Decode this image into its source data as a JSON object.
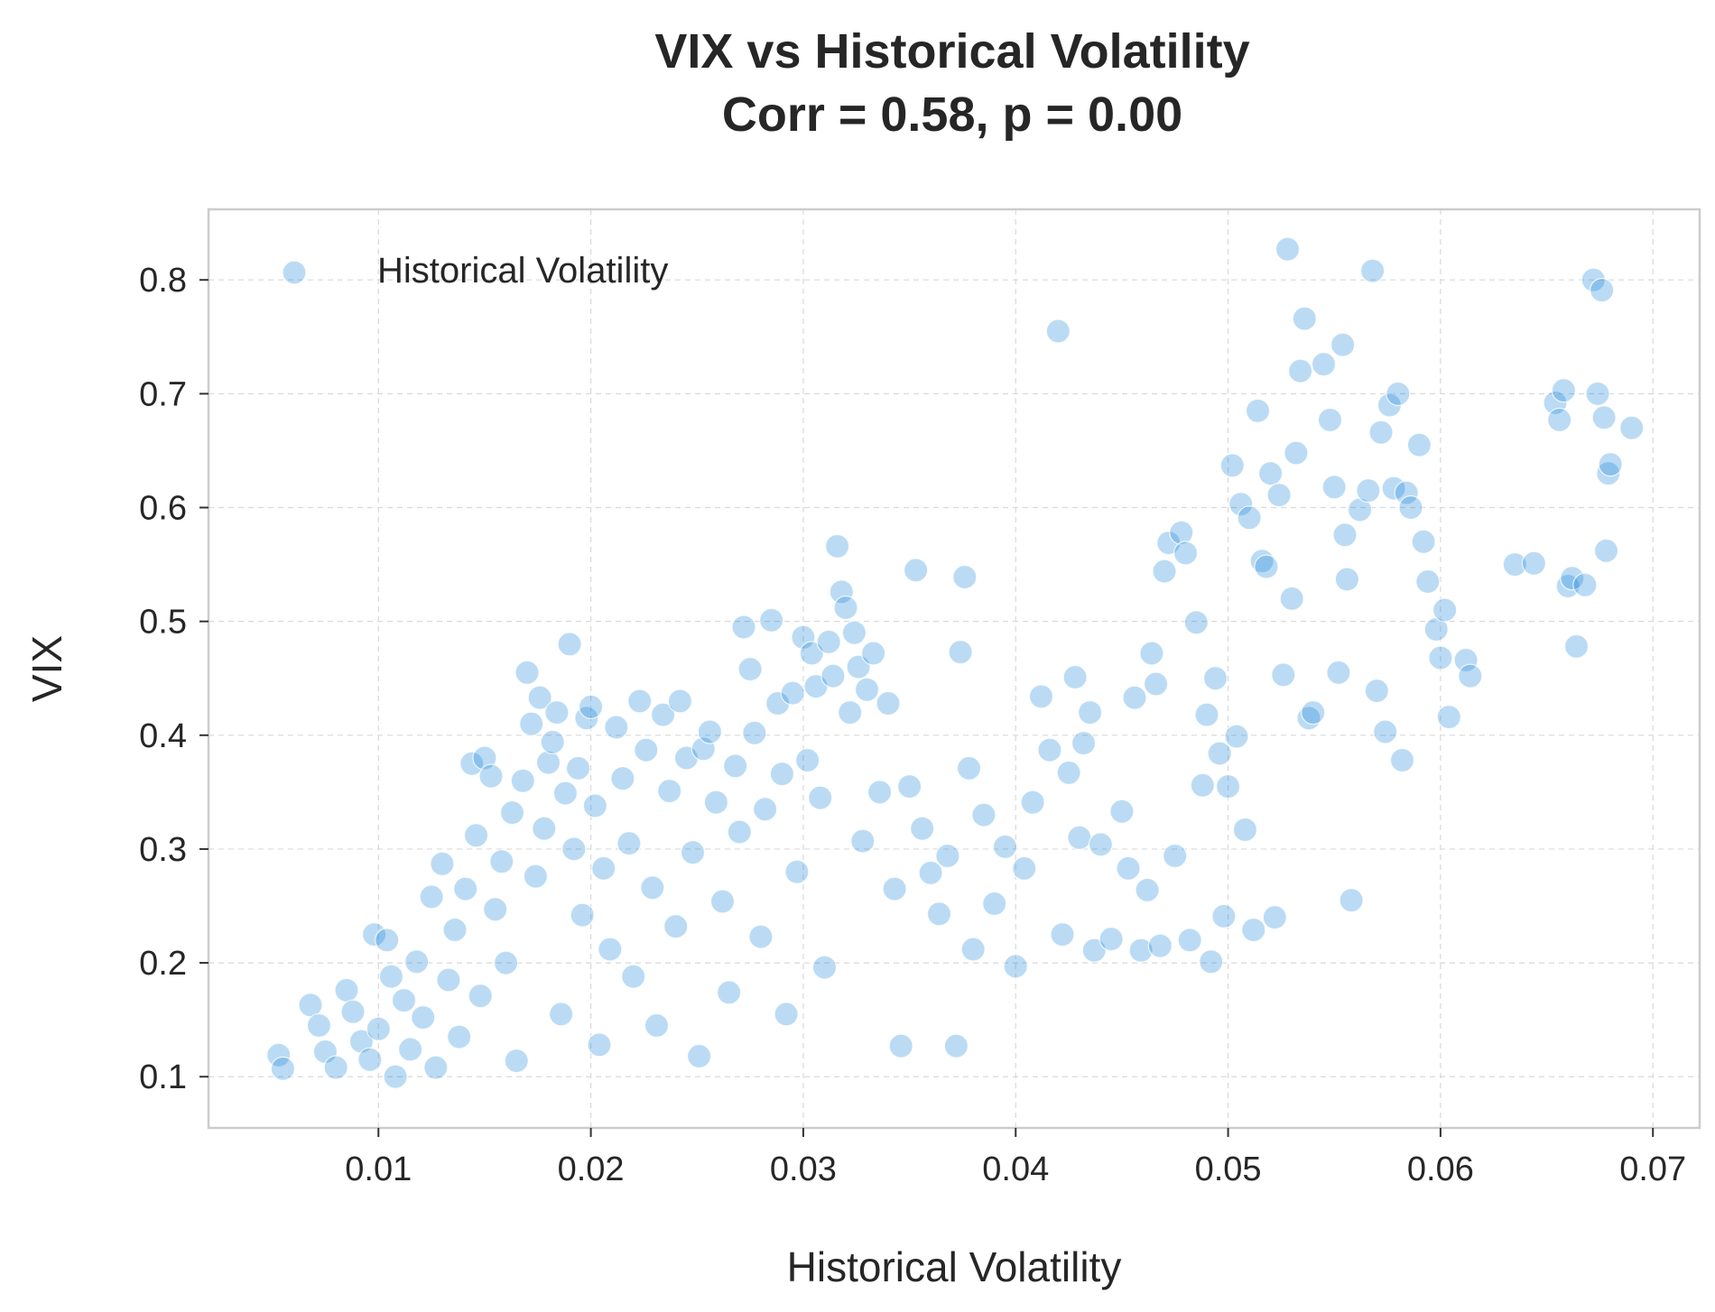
{
  "chart_data": {
    "type": "scatter",
    "title": [
      "VIX vs Historical Volatility",
      "Corr = 0.58, p = 0.00"
    ],
    "xlabel": "Historical Volatility",
    "ylabel": "VIX",
    "xlim": [
      0.002,
      0.0722
    ],
    "ylim": [
      0.055,
      0.862
    ],
    "xticks": [
      0.01,
      0.02,
      0.03,
      0.04,
      0.05,
      0.06,
      0.07
    ],
    "xtick_labels": [
      "0.01",
      "0.02",
      "0.03",
      "0.04",
      "0.05",
      "0.06",
      "0.07"
    ],
    "yticks": [
      0.1,
      0.2,
      0.3,
      0.4,
      0.5,
      0.6,
      0.7,
      0.8
    ],
    "ytick_labels": [
      "0.1",
      "0.2",
      "0.3",
      "0.4",
      "0.5",
      "0.6",
      "0.7",
      "0.8"
    ],
    "grid": true,
    "legend": {
      "placement": "top-left",
      "entries": [
        "Historical Volatility"
      ]
    },
    "colors": {
      "point": "#0a7fd6",
      "grid": "#d9d9d9",
      "frame": "#cccccc"
    },
    "series": [
      {
        "name": "Historical Volatility",
        "points": [
          [
            0.0053,
            0.119
          ],
          [
            0.0055,
            0.107
          ],
          [
            0.0068,
            0.163
          ],
          [
            0.0072,
            0.145
          ],
          [
            0.0075,
            0.122
          ],
          [
            0.008,
            0.108
          ],
          [
            0.0085,
            0.176
          ],
          [
            0.0088,
            0.157
          ],
          [
            0.0092,
            0.131
          ],
          [
            0.0096,
            0.115
          ],
          [
            0.0098,
            0.225
          ],
          [
            0.01,
            0.142
          ],
          [
            0.0104,
            0.22
          ],
          [
            0.0106,
            0.188
          ],
          [
            0.0108,
            0.1
          ],
          [
            0.0112,
            0.167
          ],
          [
            0.0115,
            0.124
          ],
          [
            0.0118,
            0.201
          ],
          [
            0.0121,
            0.152
          ],
          [
            0.0125,
            0.258
          ],
          [
            0.0127,
            0.108
          ],
          [
            0.013,
            0.287
          ],
          [
            0.0133,
            0.185
          ],
          [
            0.0136,
            0.229
          ],
          [
            0.0138,
            0.135
          ],
          [
            0.0141,
            0.265
          ],
          [
            0.0144,
            0.375
          ],
          [
            0.0146,
            0.312
          ],
          [
            0.0148,
            0.171
          ],
          [
            0.015,
            0.38
          ],
          [
            0.0153,
            0.364
          ],
          [
            0.0155,
            0.247
          ],
          [
            0.0158,
            0.289
          ],
          [
            0.016,
            0.2
          ],
          [
            0.0163,
            0.332
          ],
          [
            0.0165,
            0.114
          ],
          [
            0.0168,
            0.36
          ],
          [
            0.017,
            0.455
          ],
          [
            0.0172,
            0.41
          ],
          [
            0.0174,
            0.276
          ],
          [
            0.0176,
            0.433
          ],
          [
            0.0178,
            0.318
          ],
          [
            0.018,
            0.376
          ],
          [
            0.0182,
            0.394
          ],
          [
            0.0184,
            0.42
          ],
          [
            0.0186,
            0.155
          ],
          [
            0.0188,
            0.349
          ],
          [
            0.019,
            0.48
          ],
          [
            0.0192,
            0.3
          ],
          [
            0.0194,
            0.371
          ],
          [
            0.0196,
            0.242
          ],
          [
            0.0198,
            0.415
          ],
          [
            0.02,
            0.425
          ],
          [
            0.0202,
            0.338
          ],
          [
            0.0204,
            0.128
          ],
          [
            0.0206,
            0.283
          ],
          [
            0.0209,
            0.212
          ],
          [
            0.0212,
            0.407
          ],
          [
            0.0215,
            0.362
          ],
          [
            0.0218,
            0.305
          ],
          [
            0.022,
            0.188
          ],
          [
            0.0223,
            0.43
          ],
          [
            0.0226,
            0.387
          ],
          [
            0.0229,
            0.266
          ],
          [
            0.0231,
            0.145
          ],
          [
            0.0234,
            0.418
          ],
          [
            0.0237,
            0.351
          ],
          [
            0.024,
            0.232
          ],
          [
            0.0242,
            0.43
          ],
          [
            0.0245,
            0.38
          ],
          [
            0.0248,
            0.297
          ],
          [
            0.0251,
            0.118
          ],
          [
            0.0253,
            0.388
          ],
          [
            0.0256,
            0.403
          ],
          [
            0.0259,
            0.341
          ],
          [
            0.0262,
            0.254
          ],
          [
            0.0265,
            0.174
          ],
          [
            0.0268,
            0.373
          ],
          [
            0.027,
            0.315
          ],
          [
            0.0272,
            0.495
          ],
          [
            0.0275,
            0.458
          ],
          [
            0.0277,
            0.402
          ],
          [
            0.028,
            0.223
          ],
          [
            0.0282,
            0.335
          ],
          [
            0.0285,
            0.501
          ],
          [
            0.0288,
            0.428
          ],
          [
            0.029,
            0.366
          ],
          [
            0.0292,
            0.155
          ],
          [
            0.0295,
            0.437
          ],
          [
            0.0297,
            0.28
          ],
          [
            0.03,
            0.486
          ],
          [
            0.0302,
            0.378
          ],
          [
            0.0304,
            0.472
          ],
          [
            0.0306,
            0.443
          ],
          [
            0.0308,
            0.345
          ],
          [
            0.031,
            0.196
          ],
          [
            0.0312,
            0.482
          ],
          [
            0.0314,
            0.452
          ],
          [
            0.0316,
            0.566
          ],
          [
            0.0318,
            0.526
          ],
          [
            0.032,
            0.512
          ],
          [
            0.0322,
            0.42
          ],
          [
            0.0324,
            0.49
          ],
          [
            0.0326,
            0.46
          ],
          [
            0.0328,
            0.307
          ],
          [
            0.033,
            0.44
          ],
          [
            0.0333,
            0.472
          ],
          [
            0.0336,
            0.35
          ],
          [
            0.034,
            0.428
          ],
          [
            0.0343,
            0.265
          ],
          [
            0.0346,
            0.127
          ],
          [
            0.035,
            0.355
          ],
          [
            0.0353,
            0.545
          ],
          [
            0.0356,
            0.318
          ],
          [
            0.036,
            0.279
          ],
          [
            0.0364,
            0.243
          ],
          [
            0.0368,
            0.294
          ],
          [
            0.0372,
            0.127
          ],
          [
            0.0374,
            0.473
          ],
          [
            0.0376,
            0.539
          ],
          [
            0.0378,
            0.371
          ],
          [
            0.038,
            0.212
          ],
          [
            0.0385,
            0.33
          ],
          [
            0.039,
            0.252
          ],
          [
            0.0395,
            0.302
          ],
          [
            0.04,
            0.197
          ],
          [
            0.0404,
            0.283
          ],
          [
            0.0408,
            0.341
          ],
          [
            0.0412,
            0.434
          ],
          [
            0.0416,
            0.387
          ],
          [
            0.042,
            0.755
          ],
          [
            0.0422,
            0.225
          ],
          [
            0.0425,
            0.367
          ],
          [
            0.0428,
            0.451
          ],
          [
            0.043,
            0.31
          ],
          [
            0.0432,
            0.393
          ],
          [
            0.0435,
            0.42
          ],
          [
            0.0437,
            0.211
          ],
          [
            0.044,
            0.304
          ],
          [
            0.0445,
            0.221
          ],
          [
            0.045,
            0.333
          ],
          [
            0.0453,
            0.283
          ],
          [
            0.0456,
            0.433
          ],
          [
            0.0459,
            0.211
          ],
          [
            0.0462,
            0.264
          ],
          [
            0.0464,
            0.472
          ],
          [
            0.0466,
            0.445
          ],
          [
            0.0468,
            0.215
          ],
          [
            0.047,
            0.544
          ],
          [
            0.0472,
            0.569
          ],
          [
            0.0475,
            0.294
          ],
          [
            0.0478,
            0.578
          ],
          [
            0.048,
            0.56
          ],
          [
            0.0482,
            0.22
          ],
          [
            0.0485,
            0.499
          ],
          [
            0.0488,
            0.356
          ],
          [
            0.049,
            0.418
          ],
          [
            0.0492,
            0.201
          ],
          [
            0.0494,
            0.45
          ],
          [
            0.0496,
            0.384
          ],
          [
            0.0498,
            0.241
          ],
          [
            0.05,
            0.355
          ],
          [
            0.0502,
            0.637
          ],
          [
            0.0504,
            0.399
          ],
          [
            0.0506,
            0.603
          ],
          [
            0.0508,
            0.317
          ],
          [
            0.051,
            0.591
          ],
          [
            0.0512,
            0.229
          ],
          [
            0.0514,
            0.685
          ],
          [
            0.0516,
            0.553
          ],
          [
            0.0518,
            0.548
          ],
          [
            0.052,
            0.63
          ],
          [
            0.0522,
            0.24
          ],
          [
            0.0524,
            0.611
          ],
          [
            0.0526,
            0.453
          ],
          [
            0.0528,
            0.827
          ],
          [
            0.053,
            0.52
          ],
          [
            0.0532,
            0.648
          ],
          [
            0.0534,
            0.72
          ],
          [
            0.0536,
            0.766
          ],
          [
            0.0538,
            0.415
          ],
          [
            0.054,
            0.42
          ],
          [
            0.0545,
            0.726
          ],
          [
            0.0548,
            0.677
          ],
          [
            0.055,
            0.618
          ],
          [
            0.0552,
            0.455
          ],
          [
            0.0554,
            0.743
          ],
          [
            0.0555,
            0.576
          ],
          [
            0.0556,
            0.537
          ],
          [
            0.0558,
            0.255
          ],
          [
            0.0562,
            0.598
          ],
          [
            0.0566,
            0.615
          ],
          [
            0.0568,
            0.808
          ],
          [
            0.057,
            0.439
          ],
          [
            0.0572,
            0.666
          ],
          [
            0.0574,
            0.403
          ],
          [
            0.0576,
            0.69
          ],
          [
            0.0578,
            0.617
          ],
          [
            0.058,
            0.7
          ],
          [
            0.0582,
            0.378
          ],
          [
            0.0584,
            0.613
          ],
          [
            0.0586,
            0.6
          ],
          [
            0.059,
            0.655
          ],
          [
            0.0592,
            0.57
          ],
          [
            0.0594,
            0.535
          ],
          [
            0.0598,
            0.493
          ],
          [
            0.06,
            0.468
          ],
          [
            0.0602,
            0.51
          ],
          [
            0.0604,
            0.416
          ],
          [
            0.0612,
            0.466
          ],
          [
            0.0614,
            0.452
          ],
          [
            0.0635,
            0.55
          ],
          [
            0.0644,
            0.551
          ],
          [
            0.0654,
            0.692
          ],
          [
            0.0656,
            0.677
          ],
          [
            0.0658,
            0.703
          ],
          [
            0.066,
            0.531
          ],
          [
            0.0662,
            0.538
          ],
          [
            0.0664,
            0.478
          ],
          [
            0.0668,
            0.532
          ],
          [
            0.0672,
            0.8
          ],
          [
            0.0674,
            0.7
          ],
          [
            0.0676,
            0.791
          ],
          [
            0.0677,
            0.679
          ],
          [
            0.0678,
            0.562
          ],
          [
            0.0679,
            0.63
          ],
          [
            0.068,
            0.638
          ],
          [
            0.069,
            0.67
          ]
        ]
      }
    ]
  }
}
